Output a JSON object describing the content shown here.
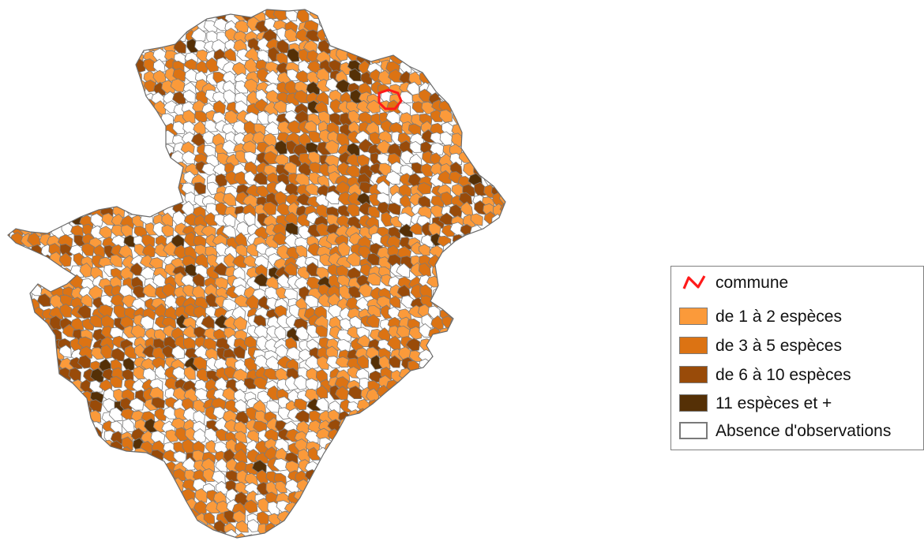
{
  "colors": {
    "level0": "#ffffff",
    "level1": "#fb9a3a",
    "level2": "#dc7313",
    "level3": "#994b09",
    "level4": "#553006",
    "borders": "#7a7a7a",
    "highlight": "#ff1a1a"
  },
  "legend": {
    "items": [
      {
        "key": "commune",
        "label": "commune",
        "symbol": "red-line-icon"
      },
      {
        "key": "level1",
        "label": "de 1 à 2 espèces",
        "color": "#fb9a3a"
      },
      {
        "key": "level2",
        "label": "de 3 à 5 espèces",
        "color": "#dc7313"
      },
      {
        "key": "level3",
        "label": "de 6 à 10 espèces",
        "color": "#994b09"
      },
      {
        "key": "level4",
        "label": " 11 espèces et +",
        "color": "#553006"
      },
      {
        "key": "level0",
        "label": "Absence d'observations",
        "color": "#ffffff"
      }
    ]
  }
}
